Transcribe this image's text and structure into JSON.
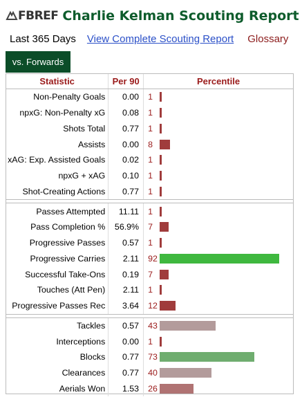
{
  "header": {
    "logo_text": "FBREF",
    "title": "Charlie Kelman Scouting Report"
  },
  "subnav": {
    "period": "Last 365 Days",
    "report_link": "View Complete Scouting Report",
    "glossary_link": "Glossary"
  },
  "tab": {
    "label": "vs. Forwards"
  },
  "table": {
    "headers": {
      "statistic": "Statistic",
      "per90": "Per 90",
      "percentile": "Percentile"
    },
    "colors": {
      "low": "#a03c3c",
      "high": "#3fb83f",
      "defense_low": "#b39b9b",
      "defense_high": "#6fad6f",
      "defense_mid": "#b07373"
    },
    "groups": [
      {
        "rows": [
          {
            "stat": "Non-Penalty Goals",
            "per90": "0.00",
            "percentile": 1,
            "color": "#a03c3c"
          },
          {
            "stat": "npxG: Non-Penalty xG",
            "per90": "0.08",
            "percentile": 1,
            "color": "#a03c3c"
          },
          {
            "stat": "Shots Total",
            "per90": "0.77",
            "percentile": 1,
            "color": "#a03c3c"
          },
          {
            "stat": "Assists",
            "per90": "0.00",
            "percentile": 8,
            "color": "#a03c3c"
          },
          {
            "stat": "xAG: Exp. Assisted Goals",
            "per90": "0.02",
            "percentile": 1,
            "color": "#a03c3c"
          },
          {
            "stat": "npxG + xAG",
            "per90": "0.10",
            "percentile": 1,
            "color": "#a03c3c"
          },
          {
            "stat": "Shot-Creating Actions",
            "per90": "0.77",
            "percentile": 1,
            "color": "#a03c3c"
          }
        ]
      },
      {
        "rows": [
          {
            "stat": "Passes Attempted",
            "per90": "11.11",
            "percentile": 1,
            "color": "#a03c3c"
          },
          {
            "stat": "Pass Completion %",
            "per90": "56.9%",
            "percentile": 7,
            "color": "#a03c3c"
          },
          {
            "stat": "Progressive Passes",
            "per90": "0.57",
            "percentile": 1,
            "color": "#a03c3c"
          },
          {
            "stat": "Progressive Carries",
            "per90": "2.11",
            "percentile": 92,
            "color": "#3fb83f"
          },
          {
            "stat": "Successful Take-Ons",
            "per90": "0.19",
            "percentile": 7,
            "color": "#a03c3c"
          },
          {
            "stat": "Touches (Att Pen)",
            "per90": "2.11",
            "percentile": 1,
            "color": "#a03c3c"
          },
          {
            "stat": "Progressive Passes Rec",
            "per90": "3.64",
            "percentile": 12,
            "color": "#a03c3c"
          }
        ]
      },
      {
        "rows": [
          {
            "stat": "Tackles",
            "per90": "0.57",
            "percentile": 43,
            "color": "#b39b9b"
          },
          {
            "stat": "Interceptions",
            "per90": "0.00",
            "percentile": 1,
            "color": "#a03c3c"
          },
          {
            "stat": "Blocks",
            "per90": "0.77",
            "percentile": 73,
            "color": "#6fad6f"
          },
          {
            "stat": "Clearances",
            "per90": "0.77",
            "percentile": 40,
            "color": "#b39b9b"
          },
          {
            "stat": "Aerials Won",
            "per90": "1.53",
            "percentile": 26,
            "color": "#b07373"
          }
        ]
      }
    ]
  }
}
